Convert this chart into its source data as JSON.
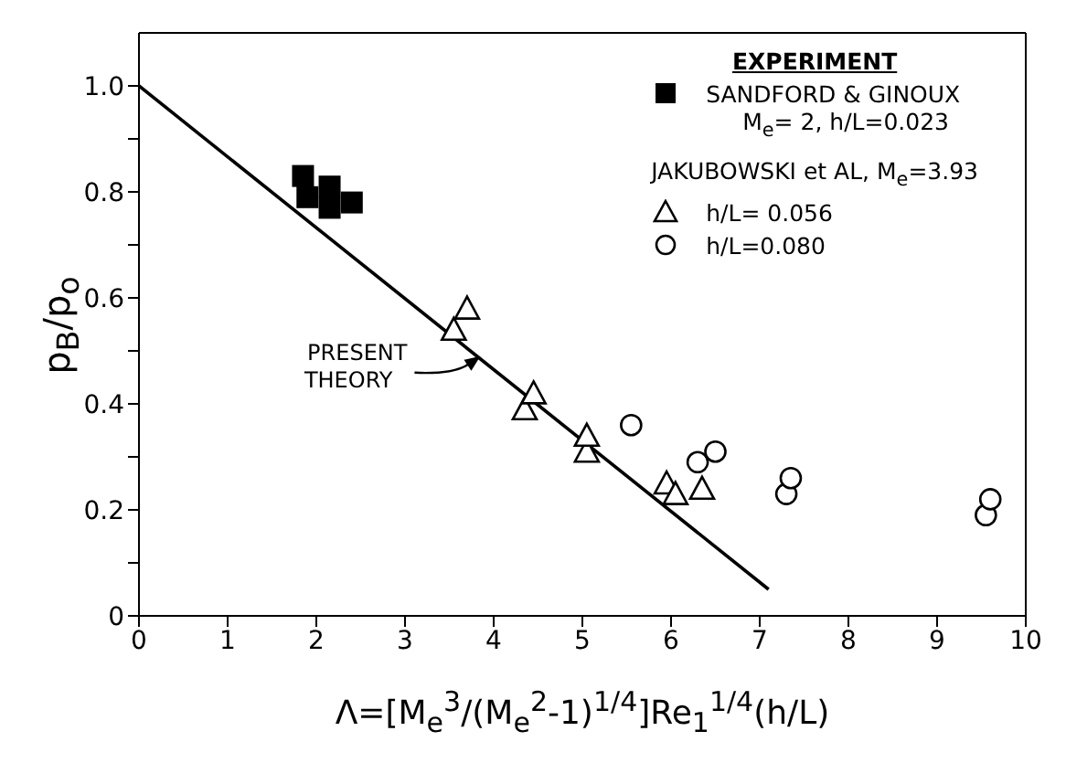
{
  "chart_data": {
    "type": "scatter",
    "xlabel": "Λ=[M$_{e}$$^{3}$/(M$_{e}$$^{2}$-1)$^{1/4}$]Re$_{1}$$^{1/4}$(h/L)",
    "ylabel": "p$_{B}$/p$_{o}$",
    "legend_title": "EXPERIMENT",
    "legend": "top right",
    "grid": false,
    "xlim": [
      0,
      10
    ],
    "xticks": [
      0,
      1,
      2,
      3,
      4,
      5,
      6,
      7,
      8,
      9,
      10
    ],
    "ylim": [
      0,
      1.1
    ],
    "yticks": [
      0,
      {
        "value": 0.1,
        "label": null
      },
      0.2,
      {
        "value": 0.3,
        "label": null
      },
      0.4,
      {
        "value": 0.5,
        "label": null
      },
      0.6,
      {
        "value": 0.7,
        "label": null
      },
      0.8,
      {
        "value": 0.9,
        "label": null
      },
      {
        "value": 1,
        "label": "1.0"
      }
    ],
    "series": [
      {
        "name": "SANDFORD & GINOUX\nM$_{e}$= 2, h/L=0.023",
        "marker": "square",
        "color": "#000000",
        "x": [
          1.85,
          1.9,
          2.15,
          2.15,
          2.4
        ],
        "values": [
          0.83,
          0.79,
          0.81,
          0.77,
          0.78
        ]
      },
      {
        "name": "h/L= 0.056",
        "marker": "triangle",
        "color": "#000000",
        "x": [
          3.55,
          3.7,
          4.35,
          4.45,
          5.05,
          5.05,
          5.95,
          6.05,
          6.35
        ],
        "values": [
          0.54,
          0.58,
          0.39,
          0.42,
          0.31,
          0.34,
          0.25,
          0.23,
          0.24
        ]
      },
      {
        "name": "h/L=0.080",
        "marker": "circle",
        "color": "#000000",
        "x": [
          5.55,
          6.3,
          6.5,
          7.3,
          7.35,
          9.55,
          9.6
        ],
        "values": [
          0.36,
          0.29,
          0.31,
          0.23,
          0.26,
          0.19,
          0.22
        ]
      },
      {
        "type": "line",
        "color": "#000000",
        "line_style": "solid",
        "marker": "none",
        "x": [
          0,
          7.1
        ],
        "values": [
          1.0,
          0.05
        ]
      }
    ],
    "annotations": [
      {
        "text": "PRESENT THEORY",
        "x": 3.85,
        "y": 0.49
      },
      "JAKUBOWSKI et AL, M$_{e}$=3.93"
    ]
  }
}
